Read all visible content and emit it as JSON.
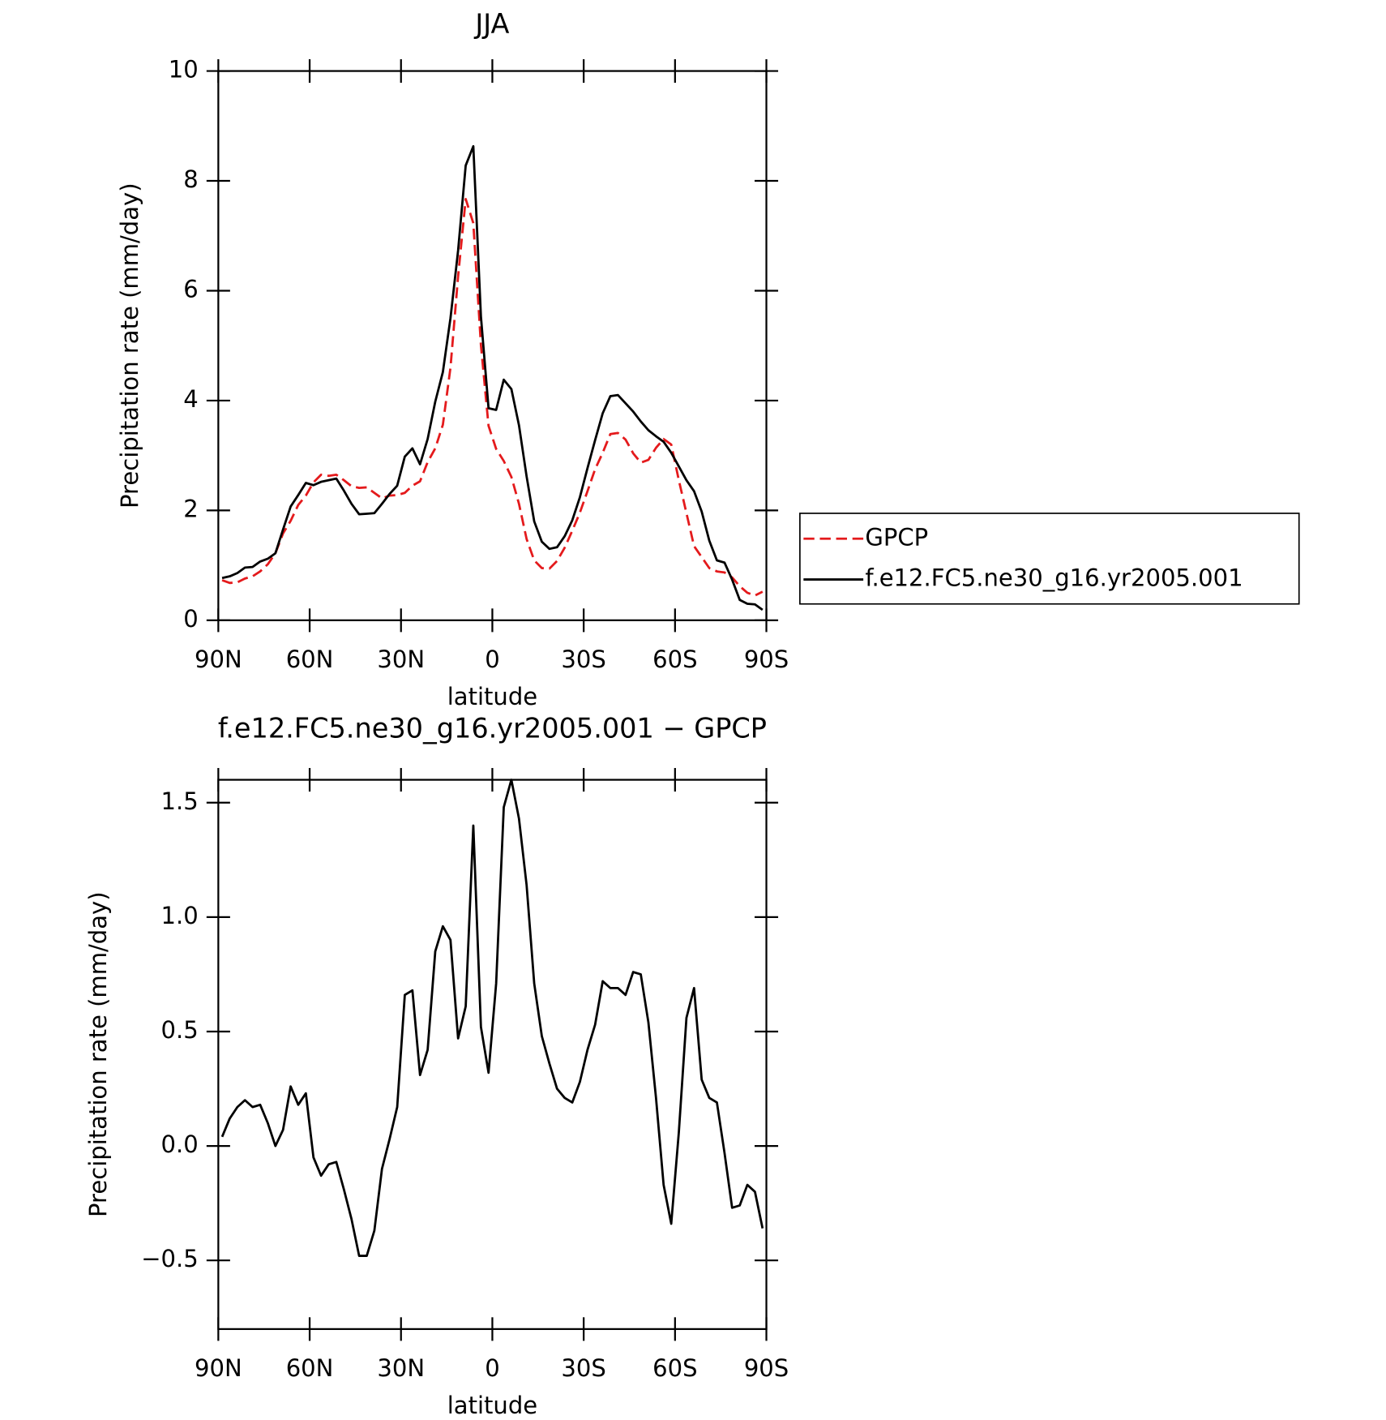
{
  "chart_data": [
    {
      "type": "line",
      "title": "JJA",
      "xlabel": "latitude",
      "ylabel": "Precipitation rate (mm/day)",
      "x": [
        88.75,
        86.25,
        83.75,
        81.25,
        78.75,
        76.25,
        73.75,
        71.25,
        68.75,
        66.25,
        63.75,
        61.25,
        58.75,
        56.25,
        53.75,
        51.25,
        48.75,
        46.25,
        43.75,
        41.25,
        38.75,
        36.25,
        33.75,
        31.25,
        28.75,
        26.25,
        23.75,
        21.25,
        18.75,
        16.25,
        13.75,
        11.25,
        8.75,
        6.25,
        3.75,
        1.25,
        -1.25,
        -3.75,
        -6.25,
        -8.75,
        -11.25,
        -13.75,
        -16.25,
        -18.75,
        -21.25,
        -23.75,
        -26.25,
        -28.75,
        -31.25,
        -33.75,
        -36.25,
        -38.75,
        -41.25,
        -43.75,
        -46.25,
        -48.75,
        -51.25,
        -53.75,
        -56.25,
        -58.75,
        -61.25,
        -63.75,
        -66.25,
        -68.75,
        -71.25,
        -73.75,
        -76.25,
        -78.75,
        -81.25,
        -83.75,
        -86.25,
        -88.75
      ],
      "series": [
        {
          "name": "GPCP",
          "color": "#e41a1c",
          "linestyle": "dashed",
          "values": [
            0.73,
            0.68,
            0.69,
            0.76,
            0.8,
            0.89,
            1.02,
            1.22,
            1.58,
            1.81,
            2.1,
            2.27,
            2.51,
            2.65,
            2.63,
            2.65,
            2.55,
            2.44,
            2.41,
            2.42,
            2.32,
            2.22,
            2.27,
            2.28,
            2.32,
            2.45,
            2.53,
            2.88,
            3.13,
            3.56,
            4.6,
            6.26,
            7.67,
            7.23,
            5.01,
            3.54,
            3.12,
            2.9,
            2.61,
            2.12,
            1.48,
            1.09,
            0.95,
            0.94,
            1.08,
            1.32,
            1.63,
            1.96,
            2.35,
            2.75,
            3.05,
            3.39,
            3.41,
            3.29,
            3.04,
            2.87,
            2.92,
            3.14,
            3.3,
            3.2,
            2.55,
            1.95,
            1.35,
            1.15,
            0.95,
            0.89,
            0.87,
            0.78,
            0.62,
            0.5,
            0.45,
            0.52
          ]
        },
        {
          "name": "f.e12.FC5.ne30_g16.yr2005.001",
          "color": "#000000",
          "linestyle": "solid",
          "values": [
            0.77,
            0.8,
            0.86,
            0.96,
            0.97,
            1.07,
            1.12,
            1.22,
            1.65,
            2.07,
            2.28,
            2.5,
            2.46,
            2.52,
            2.55,
            2.58,
            2.36,
            2.12,
            1.93,
            1.94,
            1.95,
            2.12,
            2.3,
            2.45,
            2.98,
            3.13,
            2.84,
            3.3,
            3.98,
            4.52,
            5.5,
            6.73,
            8.28,
            8.63,
            5.53,
            3.86,
            3.83,
            4.38,
            4.21,
            3.55,
            2.62,
            1.8,
            1.43,
            1.3,
            1.33,
            1.53,
            1.82,
            2.24,
            2.77,
            3.28,
            3.77,
            4.08,
            4.1,
            3.95,
            3.8,
            3.62,
            3.46,
            3.35,
            3.25,
            3.05,
            2.8,
            2.55,
            2.35,
            1.98,
            1.45,
            1.09,
            1.05,
            0.74,
            0.37,
            0.3,
            0.29,
            0.19
          ]
        }
      ],
      "xlim": [
        90,
        -90
      ],
      "xticks": [
        {
          "value": 90,
          "label": "90N"
        },
        {
          "value": 60,
          "label": "60N"
        },
        {
          "value": 30,
          "label": "30N"
        },
        0,
        {
          "value": -30,
          "label": "30S"
        },
        {
          "value": -60,
          "label": "60S"
        },
        {
          "value": -90,
          "label": "90S"
        }
      ],
      "ylim": [
        0,
        10
      ],
      "yticks": [
        0,
        2,
        4,
        6,
        8,
        10
      ],
      "legend": "right"
    },
    {
      "type": "line",
      "title": "f.e12.FC5.ne30_g16.yr2005.001 − GPCP",
      "xlabel": "latitude",
      "ylabel": "Precipitation rate (mm/day)",
      "x": [
        88.75,
        86.25,
        83.75,
        81.25,
        78.75,
        76.25,
        73.75,
        71.25,
        68.75,
        66.25,
        63.75,
        61.25,
        58.75,
        56.25,
        53.75,
        51.25,
        48.75,
        46.25,
        43.75,
        41.25,
        38.75,
        36.25,
        33.75,
        31.25,
        28.75,
        26.25,
        23.75,
        21.25,
        18.75,
        16.25,
        13.75,
        11.25,
        8.75,
        6.25,
        3.75,
        1.25,
        -1.25,
        -3.75,
        -6.25,
        -8.75,
        -11.25,
        -13.75,
        -16.25,
        -18.75,
        -21.25,
        -23.75,
        -26.25,
        -28.75,
        -31.25,
        -33.75,
        -36.25,
        -38.75,
        -41.25,
        -43.75,
        -46.25,
        -48.75,
        -51.25,
        -53.75,
        -56.25,
        -58.75,
        -61.25,
        -63.75,
        -66.25,
        -68.75,
        -71.25,
        -73.75,
        -76.25,
        -78.75,
        -81.25,
        -83.75,
        -86.25,
        -88.75
      ],
      "series": [
        {
          "color": "#000000",
          "linestyle": "solid",
          "values": [
            0.04,
            0.12,
            0.17,
            0.2,
            0.17,
            0.18,
            0.1,
            0.0,
            0.07,
            0.26,
            0.18,
            0.23,
            -0.05,
            -0.13,
            -0.08,
            -0.07,
            -0.19,
            -0.32,
            -0.48,
            -0.48,
            -0.37,
            -0.1,
            0.03,
            0.17,
            0.66,
            0.68,
            0.31,
            0.42,
            0.85,
            0.96,
            0.9,
            0.47,
            0.61,
            1.4,
            0.52,
            0.32,
            0.71,
            1.48,
            1.6,
            1.43,
            1.14,
            0.71,
            0.48,
            0.36,
            0.25,
            0.21,
            0.19,
            0.28,
            0.42,
            0.53,
            0.72,
            0.69,
            0.69,
            0.66,
            0.76,
            0.75,
            0.54,
            0.21,
            -0.17,
            -0.34,
            0.06,
            0.56,
            0.69,
            0.29,
            0.21,
            0.19,
            -0.03,
            -0.27,
            -0.26,
            -0.17,
            -0.2,
            -0.36
          ]
        }
      ],
      "xlim": [
        90,
        -90
      ],
      "xticks": [
        {
          "value": 90,
          "label": "90N"
        },
        {
          "value": 60,
          "label": "60N"
        },
        {
          "value": 30,
          "label": "30N"
        },
        0,
        {
          "value": -30,
          "label": "30S"
        },
        {
          "value": -60,
          "label": "60S"
        },
        {
          "value": -90,
          "label": "90S"
        }
      ],
      "ylim": [
        -0.8,
        1.6
      ],
      "yticks": [
        {
          "value": -0.5,
          "label": "−0.5"
        },
        {
          "value": 0,
          "label": "0.0"
        },
        0.5,
        {
          "value": 1,
          "label": "1.0"
        },
        1.5
      ]
    }
  ]
}
